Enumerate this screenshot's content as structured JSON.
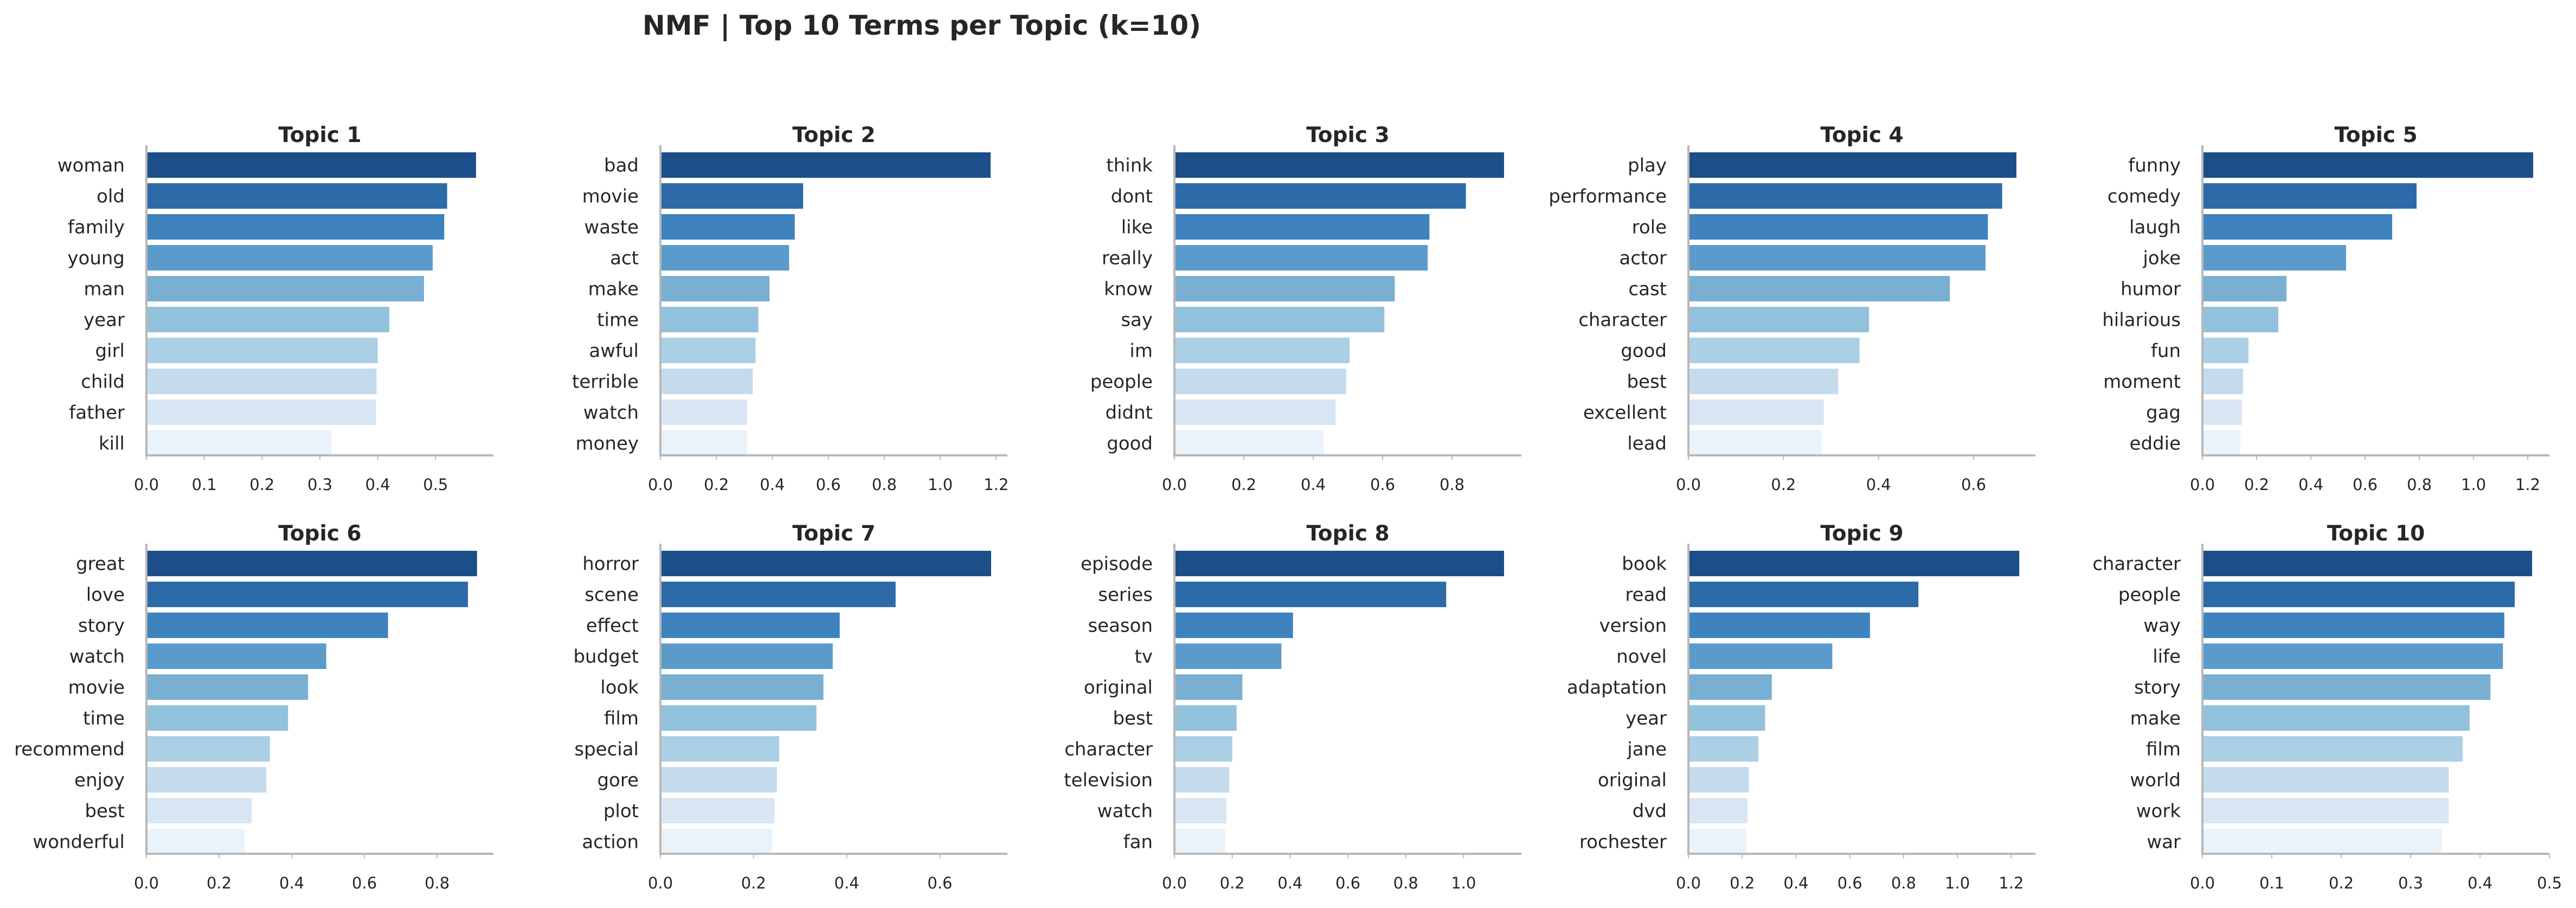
{
  "suptitle": "NMF | Top 10 Terms per Topic (k=10)",
  "palette": [
    "#1c4f8a",
    "#2d6aa8",
    "#3e83bd",
    "#5a9bcb",
    "#79afd3",
    "#92c1dc",
    "#abcfe5",
    "#c3dbed",
    "#d8e6f4",
    "#eaf2fa"
  ],
  "chart_data": [
    {
      "type": "bar",
      "orientation": "horizontal",
      "title": "Topic 1",
      "categories": [
        "woman",
        "old",
        "family",
        "young",
        "man",
        "year",
        "girl",
        "child",
        "father",
        "kill"
      ],
      "values": [
        0.57,
        0.52,
        0.515,
        0.495,
        0.48,
        0.42,
        0.4,
        0.398,
        0.397,
        0.32
      ],
      "xlim": [
        0,
        0.6
      ],
      "xticks": [
        0.0,
        0.1,
        0.2,
        0.3,
        0.4,
        0.5
      ]
    },
    {
      "type": "bar",
      "orientation": "horizontal",
      "title": "Topic 2",
      "categories": [
        "bad",
        "movie",
        "waste",
        "act",
        "make",
        "time",
        "awful",
        "terrible",
        "watch",
        "money"
      ],
      "values": [
        1.18,
        0.51,
        0.48,
        0.46,
        0.39,
        0.35,
        0.34,
        0.33,
        0.31,
        0.31
      ],
      "xlim": [
        0,
        1.24
      ],
      "xticks": [
        0.0,
        0.2,
        0.4,
        0.6,
        0.8,
        1.0,
        1.2
      ]
    },
    {
      "type": "bar",
      "orientation": "horizontal",
      "title": "Topic 3",
      "categories": [
        "think",
        "dont",
        "like",
        "really",
        "know",
        "say",
        "im",
        "people",
        "didnt",
        "good"
      ],
      "values": [
        0.95,
        0.84,
        0.735,
        0.73,
        0.635,
        0.605,
        0.505,
        0.495,
        0.465,
        0.43
      ],
      "xlim": [
        0,
        1.0
      ],
      "xticks": [
        0.0,
        0.2,
        0.4,
        0.6,
        0.8
      ]
    },
    {
      "type": "bar",
      "orientation": "horizontal",
      "title": "Topic 4",
      "categories": [
        "play",
        "performance",
        "role",
        "actor",
        "cast",
        "character",
        "good",
        "best",
        "excellent",
        "lead"
      ],
      "values": [
        0.69,
        0.66,
        0.63,
        0.625,
        0.55,
        0.38,
        0.36,
        0.315,
        0.285,
        0.28
      ],
      "xlim": [
        0,
        0.73
      ],
      "xticks": [
        0.0,
        0.2,
        0.4,
        0.6
      ]
    },
    {
      "type": "bar",
      "orientation": "horizontal",
      "title": "Topic 5",
      "categories": [
        "funny",
        "comedy",
        "laugh",
        "joke",
        "humor",
        "hilarious",
        "fun",
        "moment",
        "gag",
        "eddie"
      ],
      "values": [
        1.22,
        0.79,
        0.7,
        0.53,
        0.31,
        0.28,
        0.17,
        0.15,
        0.145,
        0.14
      ],
      "xlim": [
        0,
        1.28
      ],
      "xticks": [
        0.0,
        0.2,
        0.4,
        0.6,
        0.8,
        1.0,
        1.2
      ]
    },
    {
      "type": "bar",
      "orientation": "horizontal",
      "title": "Topic 6",
      "categories": [
        "great",
        "love",
        "story",
        "watch",
        "movie",
        "time",
        "recommend",
        "enjoy",
        "best",
        "wonderful"
      ],
      "values": [
        0.91,
        0.885,
        0.665,
        0.495,
        0.445,
        0.39,
        0.34,
        0.33,
        0.29,
        0.27
      ],
      "xlim": [
        0,
        0.955
      ],
      "xticks": [
        0.0,
        0.2,
        0.4,
        0.6,
        0.8
      ]
    },
    {
      "type": "bar",
      "orientation": "horizontal",
      "title": "Topic 7",
      "categories": [
        "horror",
        "scene",
        "effect",
        "budget",
        "look",
        "film",
        "special",
        "gore",
        "plot",
        "action"
      ],
      "values": [
        0.71,
        0.505,
        0.385,
        0.37,
        0.35,
        0.335,
        0.255,
        0.25,
        0.245,
        0.24
      ],
      "xlim": [
        0,
        0.745
      ],
      "xticks": [
        0.0,
        0.2,
        0.4,
        0.6
      ]
    },
    {
      "type": "bar",
      "orientation": "horizontal",
      "title": "Topic 8",
      "categories": [
        "episode",
        "series",
        "season",
        "tv",
        "original",
        "best",
        "character",
        "television",
        "watch",
        "fan"
      ],
      "values": [
        1.14,
        0.94,
        0.41,
        0.37,
        0.235,
        0.215,
        0.2,
        0.19,
        0.18,
        0.175
      ],
      "xlim": [
        0,
        1.2
      ],
      "xticks": [
        0.0,
        0.2,
        0.4,
        0.6,
        0.8,
        1.0
      ]
    },
    {
      "type": "bar",
      "orientation": "horizontal",
      "title": "Topic 9",
      "categories": [
        "book",
        "read",
        "version",
        "novel",
        "adaptation",
        "year",
        "jane",
        "original",
        "dvd",
        "rochester"
      ],
      "values": [
        1.23,
        0.855,
        0.675,
        0.535,
        0.31,
        0.285,
        0.26,
        0.225,
        0.22,
        0.215
      ],
      "xlim": [
        0,
        1.29
      ],
      "xticks": [
        0.0,
        0.2,
        0.4,
        0.6,
        0.8,
        1.0,
        1.2
      ]
    },
    {
      "type": "bar",
      "orientation": "horizontal",
      "title": "Topic 10",
      "categories": [
        "character",
        "people",
        "way",
        "life",
        "story",
        "make",
        "film",
        "world",
        "work",
        "war"
      ],
      "values": [
        0.475,
        0.45,
        0.435,
        0.433,
        0.415,
        0.385,
        0.375,
        0.355,
        0.355,
        0.345
      ],
      "xlim": [
        0,
        0.5
      ],
      "xticks": [
        0.0,
        0.1,
        0.2,
        0.3,
        0.4,
        0.5
      ]
    }
  ]
}
